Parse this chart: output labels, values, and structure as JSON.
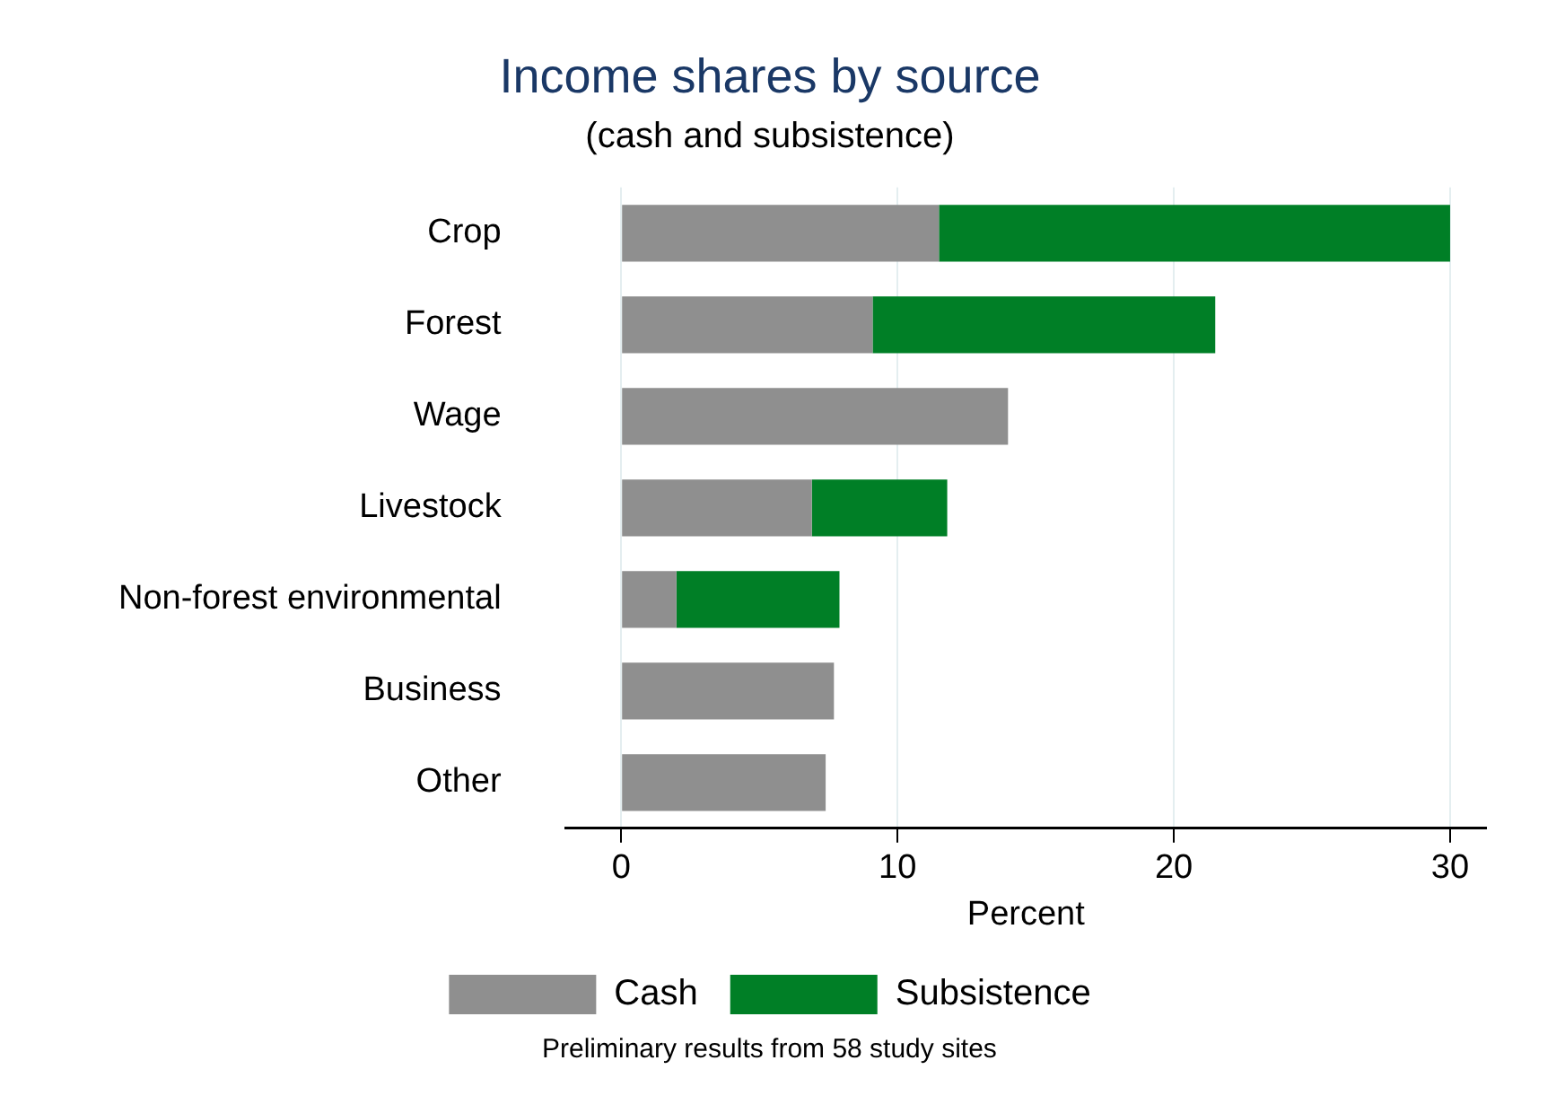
{
  "chart_data": {
    "type": "bar",
    "orientation": "horizontal",
    "stacked": true,
    "title": "Income shares by source",
    "subtitle": "(cash and subsistence)",
    "xlabel": "Percent",
    "categories": [
      "Crop",
      "Forest",
      "Wage",
      "Livestock",
      "Non-forest environmental",
      "Business",
      "Other"
    ],
    "series": [
      {
        "name": "Cash",
        "color": "#8f8f8f",
        "values": [
          11.5,
          9.1,
          14.0,
          6.9,
          2.0,
          7.7,
          7.4
        ]
      },
      {
        "name": "Subsistence",
        "color": "#007f26",
        "values": [
          18.5,
          12.4,
          null,
          4.9,
          5.9,
          null,
          null
        ]
      }
    ],
    "xlim": [
      -2,
      31.3
    ],
    "xticks": [
      0,
      10,
      20,
      30
    ],
    "grid": "x",
    "legend": "bottom",
    "annotations": [
      "Preliminary results from 58 study sites"
    ]
  }
}
